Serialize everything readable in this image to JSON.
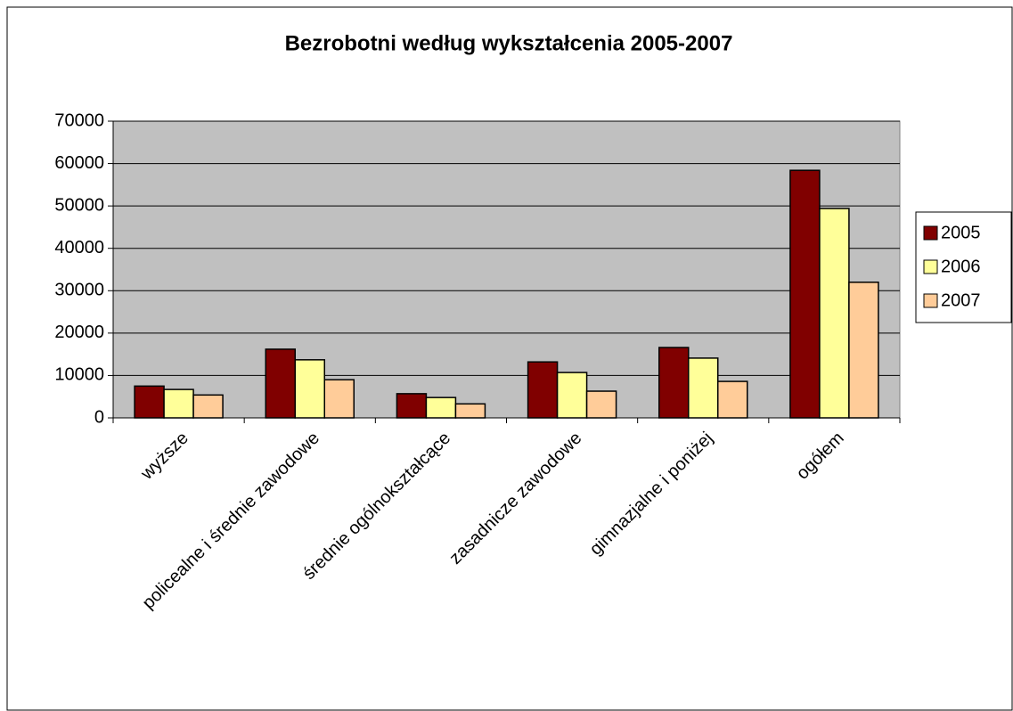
{
  "chart_data": {
    "type": "bar",
    "title": "Bezrobotni według wykształcenia 2005-2007",
    "categories": [
      "wyższe",
      "policealne i średnie zawodowe",
      "średnie ogólnokształcące",
      "zasadnicze zawodowe",
      "gimnazjalne i poniżej",
      "ogółem"
    ],
    "series": [
      {
        "name": "2005",
        "color": "#800000",
        "values": [
          7500,
          16200,
          5700,
          13200,
          16600,
          58400
        ]
      },
      {
        "name": "2006",
        "color": "#ffff99",
        "values": [
          6700,
          13700,
          4800,
          10700,
          14100,
          49400
        ]
      },
      {
        "name": "2007",
        "color": "#ffcc99",
        "values": [
          5400,
          9000,
          3300,
          6300,
          8600,
          32000
        ]
      }
    ],
    "ylim": [
      0,
      70000
    ],
    "yticks": [
      0,
      10000,
      20000,
      30000,
      40000,
      50000,
      60000,
      70000
    ],
    "grid": true,
    "legend": "right",
    "plot_background": "#c0c0c0"
  }
}
